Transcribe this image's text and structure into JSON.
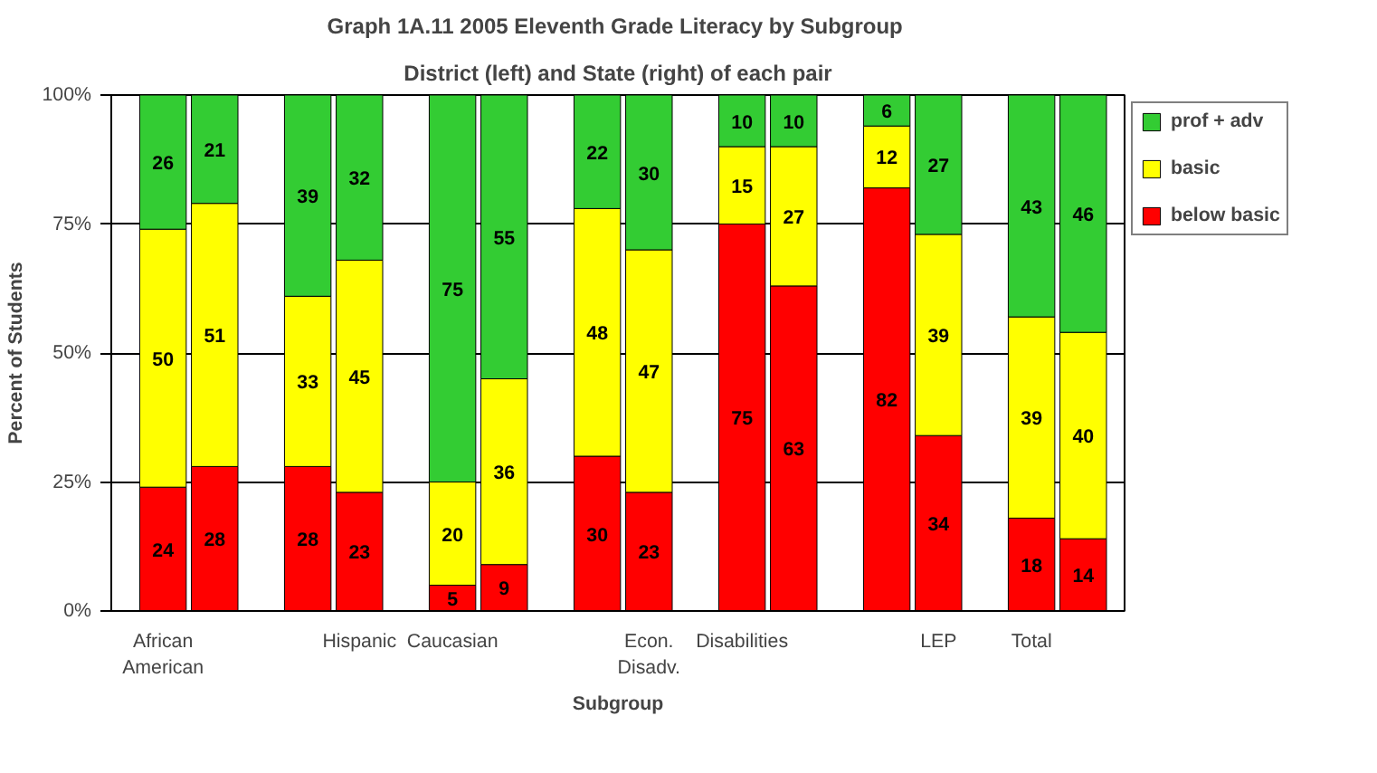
{
  "chart_data": {
    "type": "bar",
    "title": "Graph 1A.11  2005 Eleventh Grade Literacy by Subgroup",
    "subtitle": "District (left) and State (right) of each pair",
    "xlabel": "Subgroup",
    "ylabel": "Percent of Students",
    "categories": [
      "African American",
      null,
      null,
      "Hispanic",
      "Caucasian",
      null,
      null,
      "Econ. Disadv.",
      "Disabilities",
      null,
      null,
      "LEP",
      "Total",
      null
    ],
    "stacked": true,
    "series": [
      {
        "name": "below basic",
        "color": "#ff0000",
        "values": [
          24,
          28,
          28,
          23,
          5,
          9,
          30,
          23,
          75,
          63,
          82,
          34,
          18,
          14
        ]
      },
      {
        "name": "basic",
        "color": "#ffff00",
        "values": [
          50,
          51,
          33,
          45,
          20,
          36,
          48,
          47,
          15,
          27,
          12,
          39,
          39,
          40
        ]
      },
      {
        "name": "prof + adv",
        "color": "#33cc33",
        "values": [
          26,
          21,
          39,
          32,
          75,
          55,
          22,
          30,
          10,
          10,
          6,
          27,
          43,
          46
        ]
      }
    ],
    "ylim": [
      0,
      100
    ],
    "yticks": [
      {
        "value": 0,
        "label": "0%"
      },
      {
        "value": 25,
        "label": "25%"
      },
      {
        "value": 50,
        "label": "50%"
      },
      {
        "value": 75,
        "label": "75%"
      },
      {
        "value": 100,
        "label": "100%"
      }
    ],
    "grid": "y",
    "legend": "right",
    "data_labels": true
  }
}
